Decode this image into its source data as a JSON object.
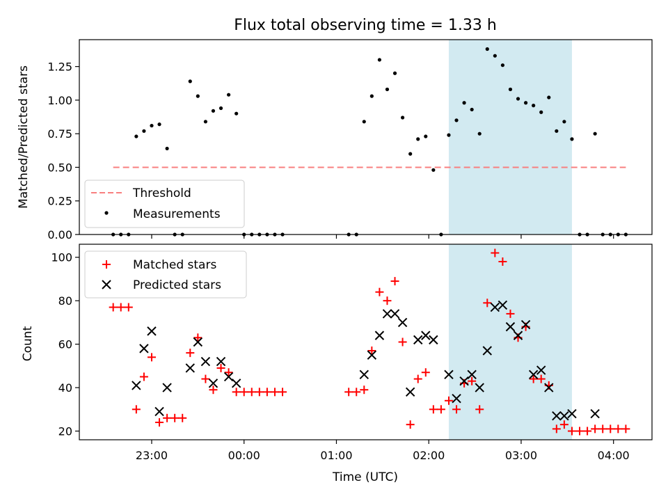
{
  "chart_data": [
    {
      "type": "scatter",
      "title": "Flux total observing time = 1.33 h",
      "xlabel": "",
      "ylabel": "Matched/Predicted stars",
      "ylim": [
        0,
        1.45
      ],
      "yticks": [
        "0.00",
        "0.25",
        "0.50",
        "0.75",
        "1.00",
        "1.25"
      ],
      "legend": {
        "placement": "lower-left",
        "entries": [
          "Threshold",
          "Measurements"
        ]
      },
      "threshold": {
        "name": "Threshold",
        "value": 0.5,
        "color": "#f87f7f"
      },
      "highlight": {
        "x": [
          "02:13",
          "03:33"
        ],
        "color": "#add8e6"
      },
      "series": [
        {
          "name": "Measurements",
          "color": "#000000",
          "x": [
            "22:35",
            "22:40",
            "22:45",
            "22:50",
            "22:55",
            "23:00",
            "23:05",
            "23:10",
            "23:15",
            "23:20",
            "23:25",
            "23:30",
            "23:35",
            "23:40",
            "23:45",
            "23:50",
            "23:55",
            "00:00",
            "00:05",
            "00:10",
            "00:15",
            "00:20",
            "00:25",
            "01:08",
            "01:13",
            "01:18",
            "01:23",
            "01:28",
            "01:33",
            "01:38",
            "01:43",
            "01:48",
            "01:53",
            "01:58",
            "02:03",
            "02:08",
            "02:13",
            "02:18",
            "02:23",
            "02:28",
            "02:33",
            "02:38",
            "02:43",
            "02:48",
            "02:53",
            "02:58",
            "03:03",
            "03:08",
            "03:13",
            "03:18",
            "03:23",
            "03:28",
            "03:33",
            "03:38",
            "03:43",
            "03:48",
            "03:53",
            "03:58",
            "04:03",
            "04:08"
          ],
          "y": [
            0,
            0,
            0,
            0.73,
            0.77,
            0.81,
            0.82,
            0.64,
            0,
            0,
            1.14,
            1.03,
            0.84,
            0.92,
            0.94,
            1.04,
            0.9,
            0,
            0,
            0,
            0,
            0,
            0,
            0,
            0,
            0.84,
            1.03,
            1.3,
            1.08,
            1.2,
            0.87,
            0.6,
            0.71,
            0.73,
            0.48,
            0,
            0.74,
            0.85,
            0.98,
            0.93,
            0.75,
            1.38,
            1.33,
            1.26,
            1.08,
            1.01,
            0.98,
            0.96,
            0.91,
            1.02,
            0.77,
            0.84,
            0.71,
            0,
            0,
            0.75,
            0,
            0,
            0,
            0
          ]
        }
      ]
    },
    {
      "type": "scatter",
      "title": "",
      "xlabel": "Time (UTC)",
      "ylabel": "Count",
      "ylim": [
        16,
        106
      ],
      "yticks": [
        "20",
        "40",
        "60",
        "80",
        "100"
      ],
      "xticks": [
        "23:00",
        "00:00",
        "01:00",
        "02:00",
        "03:00",
        "04:00"
      ],
      "legend": {
        "placement": "top-left",
        "entries": [
          "Matched stars",
          "Predicted stars"
        ]
      },
      "highlight": {
        "x": [
          "02:13",
          "03:33"
        ],
        "color": "#add8e6"
      },
      "series": [
        {
          "name": "Matched stars",
          "color": "#ff0000",
          "marker": "plus",
          "x": [
            "22:35",
            "22:40",
            "22:45",
            "22:50",
            "22:55",
            "23:00",
            "23:05",
            "23:10",
            "23:15",
            "23:20",
            "23:25",
            "23:30",
            "23:35",
            "23:40",
            "23:45",
            "23:50",
            "23:55",
            "00:00",
            "00:05",
            "00:10",
            "00:15",
            "00:20",
            "00:25",
            "01:08",
            "01:13",
            "01:18",
            "01:23",
            "01:28",
            "01:33",
            "01:38",
            "01:43",
            "01:48",
            "01:53",
            "01:58",
            "02:03",
            "02:08",
            "02:13",
            "02:18",
            "02:23",
            "02:28",
            "02:33",
            "02:38",
            "02:43",
            "02:48",
            "02:53",
            "02:58",
            "03:03",
            "03:08",
            "03:13",
            "03:18",
            "03:23",
            "03:28",
            "03:33",
            "03:38",
            "03:43",
            "03:48",
            "03:53",
            "03:58",
            "04:03",
            "04:08"
          ],
          "y": [
            77,
            77,
            77,
            30,
            45,
            54,
            24,
            26,
            26,
            26,
            56,
            63,
            44,
            39,
            49,
            47,
            38,
            38,
            38,
            38,
            38,
            38,
            38,
            38,
            38,
            39,
            57,
            84,
            80,
            89,
            61,
            23,
            44,
            47,
            30,
            30,
            34,
            30,
            42,
            43,
            30,
            79,
            102,
            98,
            74,
            63,
            68,
            44,
            44,
            41,
            21,
            23,
            20,
            20,
            20,
            21,
            21,
            21,
            21,
            21
          ]
        },
        {
          "name": "Predicted stars",
          "color": "#000000",
          "marker": "x",
          "x": [
            "22:50",
            "22:55",
            "23:00",
            "23:05",
            "23:10",
            "23:25",
            "23:30",
            "23:35",
            "23:40",
            "23:45",
            "23:50",
            "23:55",
            "01:18",
            "01:23",
            "01:28",
            "01:33",
            "01:38",
            "01:43",
            "01:48",
            "01:53",
            "01:58",
            "02:03",
            "02:13",
            "02:18",
            "02:23",
            "02:28",
            "02:33",
            "02:38",
            "02:43",
            "02:48",
            "02:53",
            "02:58",
            "03:03",
            "03:08",
            "03:13",
            "03:18",
            "03:23",
            "03:28",
            "03:33",
            "03:48"
          ],
          "y": [
            41,
            58,
            66,
            29,
            40,
            49,
            61,
            52,
            42,
            52,
            45,
            42,
            46,
            55,
            64,
            74,
            74,
            70,
            38,
            62,
            64,
            62,
            46,
            35,
            43,
            46,
            40,
            57,
            77,
            78,
            68,
            64,
            69,
            46,
            48,
            40,
            27,
            27,
            28,
            28
          ]
        }
      ]
    }
  ]
}
